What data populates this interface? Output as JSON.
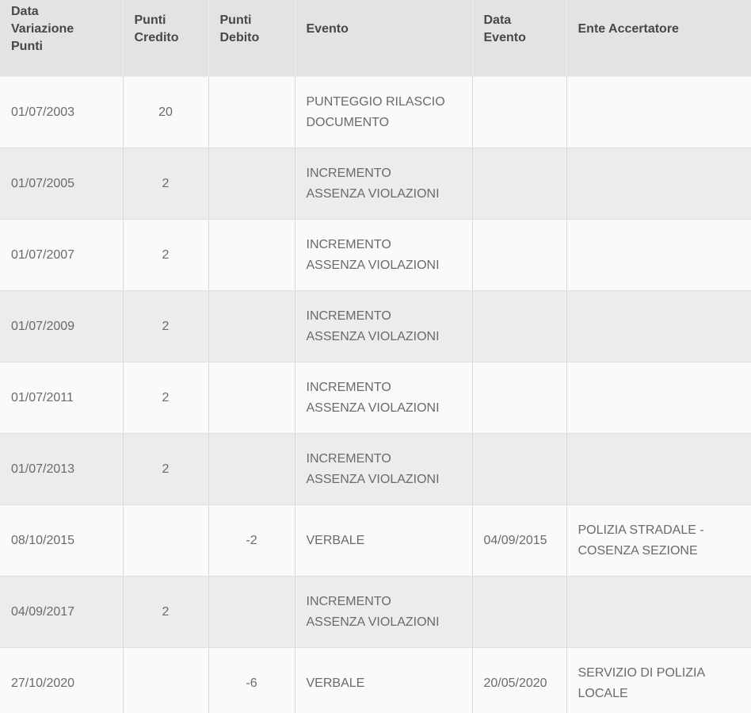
{
  "colors": {
    "header_bg": "#e3e3e3",
    "header_text": "#45484b",
    "row_odd_bg": "#fafafa",
    "row_even_bg": "#ececec",
    "body_text": "#6a6a6a",
    "vertical_border": "#d8d8d8",
    "horizontal_border": "#e0e0e0"
  },
  "table": {
    "columns": [
      {
        "key": "data-variazione-punti",
        "label": "Data\nVariazione\nPunti"
      },
      {
        "key": "punti-credito",
        "label": "Punti\nCredito"
      },
      {
        "key": "punti-debito",
        "label": "Punti\nDebito"
      },
      {
        "key": "evento",
        "label": "Evento"
      },
      {
        "key": "data-evento",
        "label": "Data\nEvento"
      },
      {
        "key": "ente-accertatore",
        "label": "Ente Accertatore"
      }
    ],
    "rows": [
      [
        "01/07/2003",
        "20",
        "",
        "PUNTEGGIO RILASCIO\nDOCUMENTO",
        "",
        ""
      ],
      [
        "01/07/2005",
        "2",
        "",
        "INCREMENTO\nASSENZA VIOLAZIONI",
        "",
        ""
      ],
      [
        "01/07/2007",
        "2",
        "",
        "INCREMENTO\nASSENZA VIOLAZIONI",
        "",
        ""
      ],
      [
        "01/07/2009",
        "2",
        "",
        "INCREMENTO\nASSENZA VIOLAZIONI",
        "",
        ""
      ],
      [
        "01/07/2011",
        "2",
        "",
        "INCREMENTO\nASSENZA VIOLAZIONI",
        "",
        ""
      ],
      [
        "01/07/2013",
        "2",
        "",
        "INCREMENTO\nASSENZA VIOLAZIONI",
        "",
        ""
      ],
      [
        "08/10/2015",
        "",
        "-2",
        "VERBALE",
        "04/09/2015",
        "POLIZIA STRADALE -\nCOSENZA SEZIONE"
      ],
      [
        "04/09/2017",
        "2",
        "",
        "INCREMENTO\nASSENZA VIOLAZIONI",
        "",
        ""
      ],
      [
        "27/10/2020",
        "",
        "-6",
        "VERBALE",
        "20/05/2020",
        "SERVIZIO DI POLIZIA\nLOCALE"
      ]
    ]
  }
}
